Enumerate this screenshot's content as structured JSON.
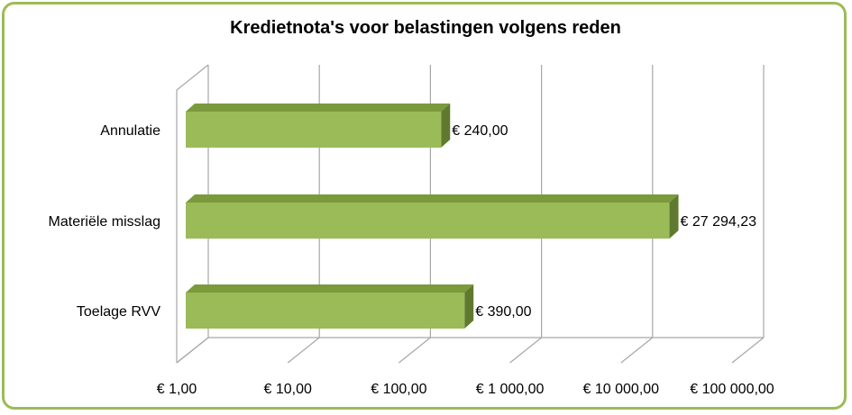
{
  "chart_data": {
    "type": "bar",
    "orientation": "horizontal",
    "title": "Kredietnota's voor belastingen volgens reden",
    "categories": [
      "Annulatie",
      "Materiële misslag",
      "Toelage RVV"
    ],
    "values": [
      240.0,
      27294.23,
      390.0
    ],
    "data_labels": [
      "€  240,00",
      "€ 27 294,23",
      "€  390,00"
    ],
    "x_scale": "log",
    "x_ticks": [
      1,
      10,
      100,
      1000,
      10000,
      100000
    ],
    "x_tick_labels": [
      "€  1,00",
      "€  10,00",
      "€  100,00",
      "€ 1 000,00",
      "€ 10 000,00",
      "€ 100 000,00"
    ],
    "xlim": [
      1,
      100000
    ],
    "grid": true,
    "legend": "none",
    "colors": {
      "bar_front": "#9bbb59",
      "bar_top": "#7a9a3c",
      "bar_side": "#5f7a2e",
      "grid": "#a6a6a6",
      "frame": "#9bbb59"
    }
  }
}
